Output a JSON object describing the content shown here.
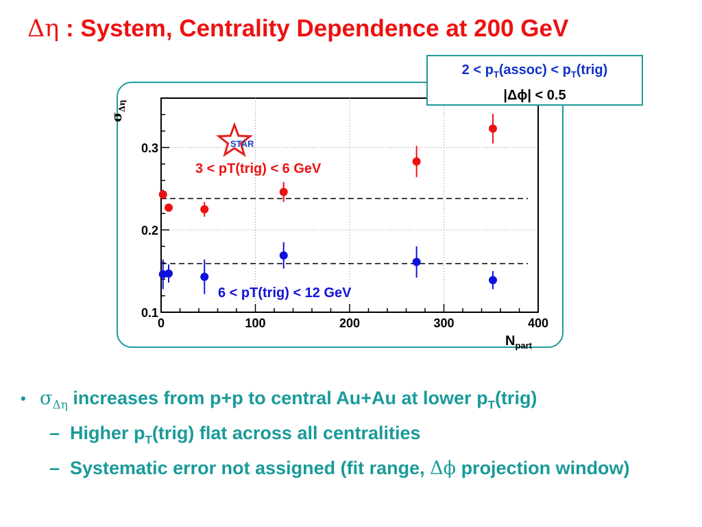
{
  "slide": {
    "title_prefix": "Δη",
    "title_rest": " :  System, Centrality Dependence at 200 GeV"
  },
  "selection": {
    "line1_a": "2 < p",
    "line1_sub_a": "T",
    "line1_b": "(assoc) < p",
    "line1_sub_b": "T",
    "line1_c": "(trig)",
    "line2": "|Δϕ| < 0.5"
  },
  "logo": {
    "text": "STAR"
  },
  "bullets": {
    "b1_sym": "σ",
    "b1_sub": "Δη",
    "b1_text": " increases from p+p to central Au+Au at lower p",
    "b1_sub2": "T",
    "b1_end": "(trig)",
    "b2a_pre": "Higher p",
    "b2a_sub": "T",
    "b2a_post": "(trig) flat across all centralities",
    "b2b_pre": "Systematic error not assigned (fit range, ",
    "b2b_sym": "Δϕ",
    "b2b_post": " projection window)"
  },
  "chart_data": {
    "type": "scatter",
    "xlabel": "N",
    "xlabel_sub": "part",
    "ylabel": "σ",
    "ylabel_sub": "Δη",
    "xlim": [
      0,
      400
    ],
    "ylim": [
      0.1,
      0.36
    ],
    "xticks": [
      0,
      100,
      200,
      300,
      400
    ],
    "yticks": [
      0.1,
      0.2,
      0.3
    ],
    "series": [
      {
        "name": "3 < pT(trig) < 6 GeV",
        "color": "#ee1111",
        "points": [
          {
            "x": 2,
            "y": 0.243,
            "err": 0.006
          },
          {
            "x": 8,
            "y": 0.227,
            "err": 0.004
          },
          {
            "x": 46,
            "y": 0.225,
            "err": 0.009
          },
          {
            "x": 130,
            "y": 0.246,
            "err": 0.012
          },
          {
            "x": 271,
            "y": 0.283,
            "err": 0.019
          },
          {
            "x": 352,
            "y": 0.323,
            "err": 0.018
          }
        ],
        "reference_y": 0.238
      },
      {
        "name": "6 < pT(trig) < 12 GeV",
        "color": "#1010dd",
        "points": [
          {
            "x": 2,
            "y": 0.146,
            "err": 0.018
          },
          {
            "x": 8,
            "y": 0.147,
            "err": 0.011
          },
          {
            "x": 46,
            "y": 0.143,
            "err": 0.021
          },
          {
            "x": 130,
            "y": 0.169,
            "err": 0.016
          },
          {
            "x": 271,
            "y": 0.161,
            "err": 0.019
          },
          {
            "x": 352,
            "y": 0.139,
            "err": 0.011
          }
        ],
        "reference_y": 0.159
      }
    ]
  }
}
